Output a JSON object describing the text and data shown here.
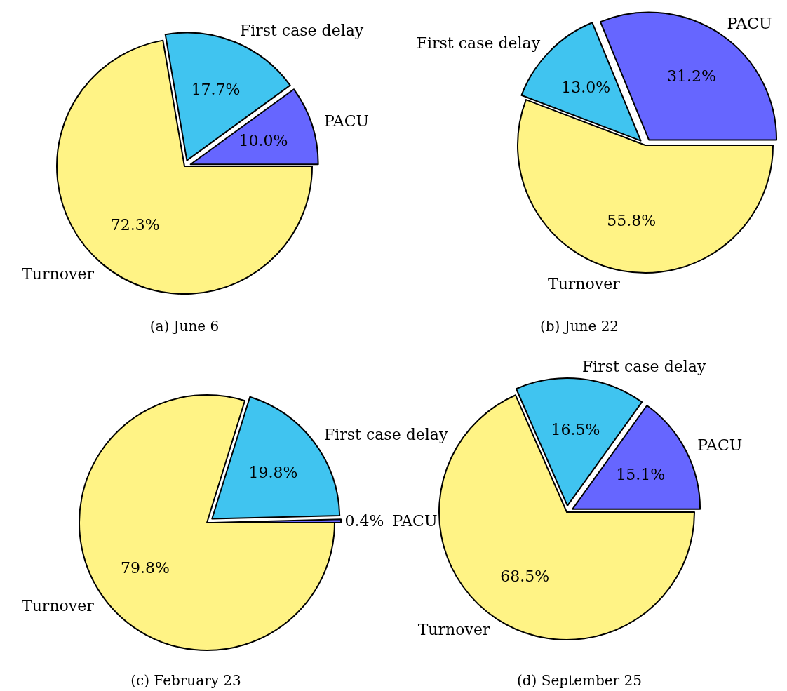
{
  "chart_data": [
    {
      "type": "pie",
      "title": "(a) June 6",
      "categories": [
        "PACU",
        "First case delay",
        "Turnover"
      ],
      "values": [
        10.0,
        17.7,
        72.3
      ],
      "colors": [
        "#6666ff",
        "#40c4f0",
        "#fff385"
      ],
      "value_labels": [
        "10.0%",
        "17.7%",
        "72.3%"
      ]
    },
    {
      "type": "pie",
      "title": "(b) June 22",
      "categories": [
        "PACU",
        "First case delay",
        "Turnover"
      ],
      "values": [
        31.2,
        13.0,
        55.8
      ],
      "colors": [
        "#6666ff",
        "#40c4f0",
        "#fff385"
      ],
      "value_labels": [
        "31.2%",
        "13.0%",
        "55.8%"
      ]
    },
    {
      "type": "pie",
      "title": "(c) February 23",
      "categories": [
        "PACU",
        "First case delay",
        "Turnover"
      ],
      "values": [
        0.4,
        19.8,
        79.8
      ],
      "colors": [
        "#6666ff",
        "#40c4f0",
        "#fff385"
      ],
      "value_labels": [
        "0.4%",
        "19.8%",
        "79.8%"
      ]
    },
    {
      "type": "pie",
      "title": "(d) September 25",
      "categories": [
        "PACU",
        "First case delay",
        "Turnover"
      ],
      "values": [
        15.1,
        16.5,
        68.5
      ],
      "colors": [
        "#6666ff",
        "#40c4f0",
        "#fff385"
      ],
      "value_labels": [
        "15.1%",
        "16.5%",
        "68.5%"
      ]
    }
  ]
}
